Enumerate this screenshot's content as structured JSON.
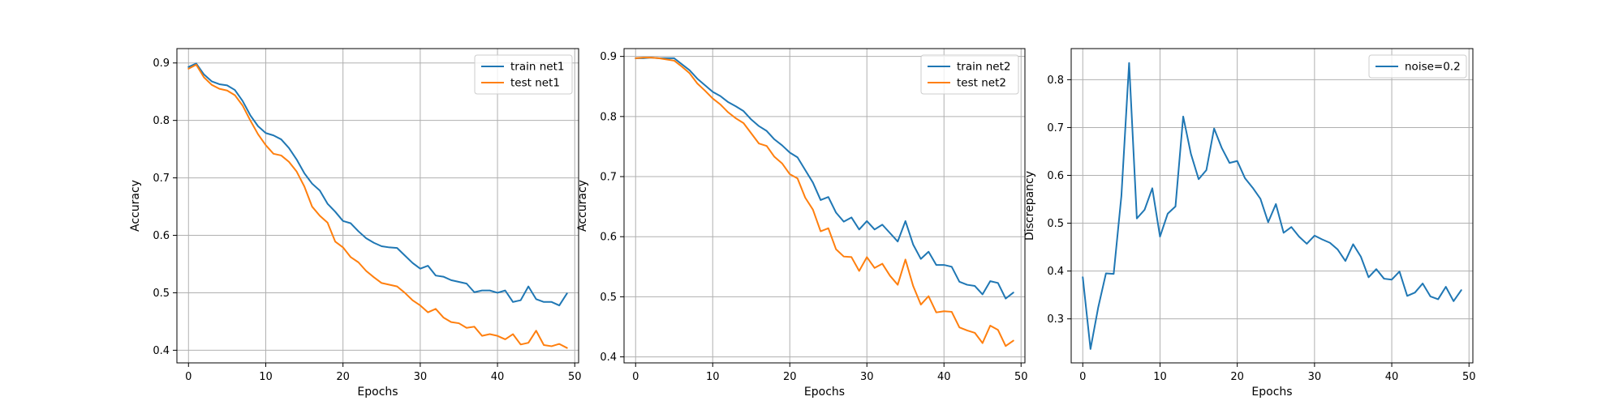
{
  "chart_data": [
    {
      "type": "line",
      "title": "",
      "xlabel": "Epochs",
      "ylabel": "Accuracy",
      "xlim": [
        -1.5,
        50.5
      ],
      "ylim": [
        0.378,
        0.925
      ],
      "xticks": [
        0,
        10,
        20,
        30,
        40,
        50
      ],
      "yticks": [
        0.4,
        0.5,
        0.6,
        0.7,
        0.8,
        0.9
      ],
      "grid": true,
      "legend": "top-right",
      "series": [
        {
          "name": "train net1",
          "color": "#1f77b4",
          "values": [
            0.893,
            0.899,
            0.88,
            0.868,
            0.863,
            0.861,
            0.853,
            0.834,
            0.809,
            0.79,
            0.778,
            0.774,
            0.767,
            0.752,
            0.732,
            0.708,
            0.69,
            0.678,
            0.655,
            0.641,
            0.625,
            0.621,
            0.607,
            0.595,
            0.587,
            0.581,
            0.579,
            0.578,
            0.565,
            0.552,
            0.542,
            0.547,
            0.53,
            0.528,
            0.522,
            0.519,
            0.516,
            0.501,
            0.504,
            0.504,
            0.5,
            0.504,
            0.484,
            0.487,
            0.511,
            0.489,
            0.484,
            0.484,
            0.478,
            0.499
          ]
        },
        {
          "name": "test net1",
          "color": "#ff7f0e",
          "values": [
            0.89,
            0.897,
            0.875,
            0.862,
            0.855,
            0.852,
            0.844,
            0.826,
            0.8,
            0.776,
            0.757,
            0.742,
            0.739,
            0.728,
            0.711,
            0.685,
            0.65,
            0.634,
            0.622,
            0.589,
            0.579,
            0.562,
            0.553,
            0.538,
            0.527,
            0.517,
            0.514,
            0.511,
            0.5,
            0.487,
            0.478,
            0.466,
            0.472,
            0.457,
            0.449,
            0.447,
            0.439,
            0.441,
            0.425,
            0.428,
            0.425,
            0.419,
            0.428,
            0.41,
            0.413,
            0.434,
            0.409,
            0.407,
            0.411,
            0.404
          ]
        }
      ]
    },
    {
      "type": "line",
      "title": "",
      "xlabel": "Epochs",
      "ylabel": "Accuracy",
      "xlim": [
        -1.5,
        50.5
      ],
      "ylim": [
        0.39,
        0.913
      ],
      "xticks": [
        0,
        10,
        20,
        30,
        40,
        50
      ],
      "yticks": [
        0.4,
        0.5,
        0.6,
        0.7,
        0.8,
        0.9
      ],
      "grid": true,
      "legend": "top-right",
      "series": [
        {
          "name": "train net2",
          "color": "#1f77b4",
          "values": [
            0.897,
            0.897,
            0.898,
            0.897,
            0.897,
            0.897,
            0.887,
            0.877,
            0.863,
            0.852,
            0.841,
            0.834,
            0.824,
            0.817,
            0.809,
            0.795,
            0.784,
            0.776,
            0.762,
            0.752,
            0.74,
            0.732,
            0.711,
            0.69,
            0.661,
            0.666,
            0.64,
            0.625,
            0.632,
            0.612,
            0.626,
            0.612,
            0.62,
            0.606,
            0.592,
            0.626,
            0.587,
            0.563,
            0.575,
            0.553,
            0.553,
            0.55,
            0.525,
            0.52,
            0.518,
            0.504,
            0.526,
            0.523,
            0.497,
            0.507
          ]
        },
        {
          "name": "test net2",
          "color": "#ff7f0e",
          "values": [
            0.897,
            0.898,
            0.898,
            0.897,
            0.895,
            0.893,
            0.883,
            0.872,
            0.855,
            0.843,
            0.83,
            0.82,
            0.807,
            0.797,
            0.789,
            0.772,
            0.755,
            0.751,
            0.733,
            0.722,
            0.704,
            0.697,
            0.665,
            0.645,
            0.609,
            0.614,
            0.579,
            0.567,
            0.566,
            0.543,
            0.566,
            0.548,
            0.555,
            0.535,
            0.52,
            0.562,
            0.518,
            0.487,
            0.501,
            0.474,
            0.476,
            0.475,
            0.449,
            0.444,
            0.44,
            0.423,
            0.452,
            0.445,
            0.418,
            0.427
          ]
        }
      ]
    },
    {
      "type": "line",
      "title": "",
      "xlabel": "Epochs",
      "ylabel": "Discrepancy",
      "xlim": [
        -1.5,
        50.5
      ],
      "ylim": [
        0.208,
        0.865
      ],
      "xticks": [
        0,
        10,
        20,
        30,
        40,
        50
      ],
      "yticks": [
        0.3,
        0.4,
        0.5,
        0.6,
        0.7,
        0.8
      ],
      "grid": true,
      "legend": "top-right",
      "series": [
        {
          "name": "noise=0.2",
          "color": "#1f77b4",
          "values": [
            0.387,
            0.237,
            0.324,
            0.395,
            0.394,
            0.557,
            0.835,
            0.51,
            0.528,
            0.573,
            0.472,
            0.52,
            0.535,
            0.723,
            0.645,
            0.592,
            0.611,
            0.698,
            0.657,
            0.626,
            0.63,
            0.594,
            0.574,
            0.551,
            0.502,
            0.54,
            0.48,
            0.492,
            0.472,
            0.457,
            0.474,
            0.466,
            0.459,
            0.445,
            0.421,
            0.456,
            0.43,
            0.387,
            0.404,
            0.384,
            0.382,
            0.399,
            0.348,
            0.355,
            0.374,
            0.347,
            0.341,
            0.367,
            0.337,
            0.36
          ]
        }
      ]
    }
  ]
}
